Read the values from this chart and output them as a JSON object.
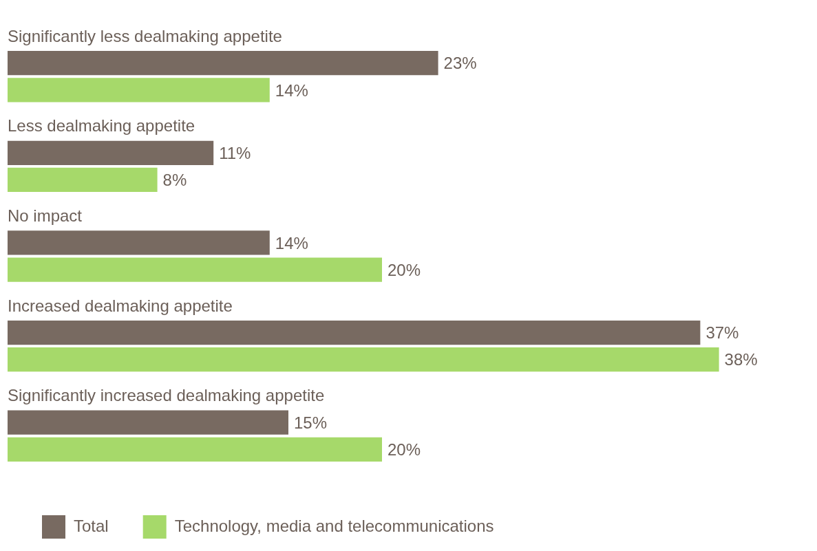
{
  "chart_data": {
    "type": "bar",
    "orientation": "horizontal",
    "legend": "bottom left",
    "categories": [
      "Significantly less dealmaking appetite",
      "Less dealmaking appetite",
      "No impact",
      "Increased dealmaking appetite",
      "Significantly increased dealmaking appetite"
    ],
    "series": [
      {
        "name": "Total",
        "color": "#786a61",
        "values": [
          23,
          11,
          14,
          37,
          15
        ],
        "value_labels": [
          "23%",
          "11%",
          "14%",
          "37%",
          "15%"
        ]
      },
      {
        "name": "Technology, media and telecommunications",
        "color": "#a6d96a",
        "values": [
          14,
          8,
          20,
          38,
          20
        ],
        "value_labels": [
          "14%",
          "8%",
          "20%",
          "38%",
          "20%"
        ]
      }
    ]
  }
}
